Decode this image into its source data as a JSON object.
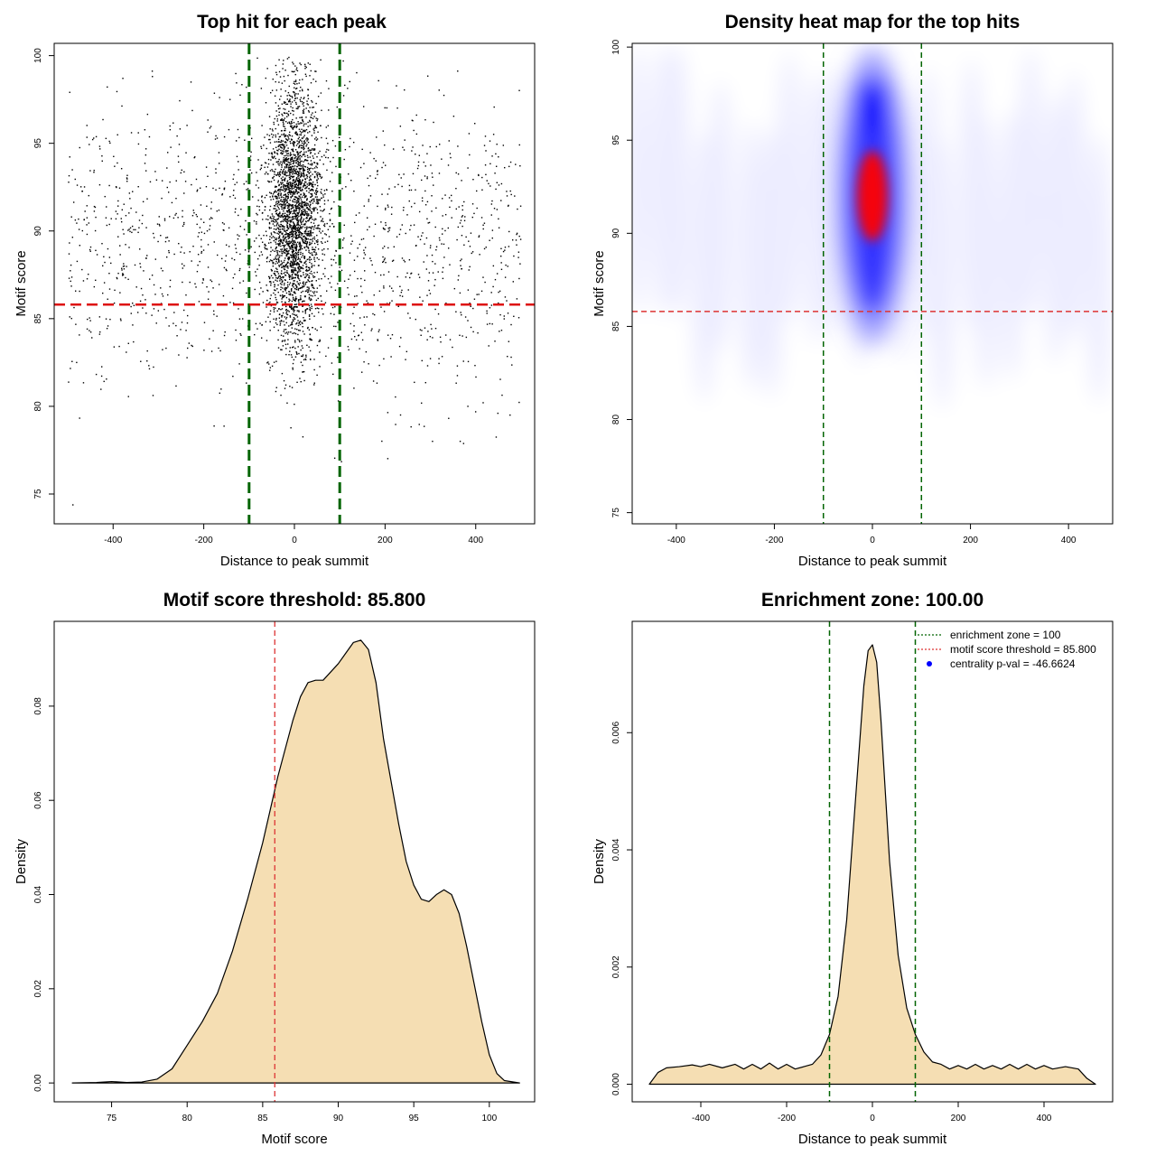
{
  "chart_data": [
    {
      "id": "p1",
      "type": "scatter",
      "title": "Top hit for each peak",
      "xlabel": "Distance to peak summit",
      "ylabel": "Motif score",
      "xlim": [
        -530,
        530
      ],
      "ylim": [
        73.3,
        100.7
      ],
      "xticks": [
        -400,
        -200,
        0,
        200,
        400
      ],
      "yticks": [
        75,
        80,
        85,
        90,
        95,
        100
      ],
      "vlines": [
        -100,
        100
      ],
      "hline": 85.8,
      "vline_color": "#006400",
      "hline_color": "#dd1111",
      "point_color": "#000000",
      "point_cloud": {
        "background_uniform_x": [
          -500,
          500
        ],
        "background_score_range": [
          74,
          100
        ],
        "central_x_sd": 30,
        "central_score_mean": 91,
        "approx_total_points": 4200
      }
    },
    {
      "id": "p2",
      "type": "heatmap",
      "title": "Density heat map for the top hits",
      "xlabel": "Distance to peak summit",
      "ylabel": "Motif score",
      "xlim": [
        -490,
        490
      ],
      "ylim": [
        74.4,
        100.2
      ],
      "xticks": [
        -400,
        -200,
        0,
        200,
        400
      ],
      "yticks": [
        75,
        80,
        85,
        90,
        95,
        100
      ],
      "vlines": [
        -100,
        100
      ],
      "hline": 85.8,
      "vline_color": "#006400",
      "hline_color": "#dd3333",
      "colors": [
        "#ffffff",
        "#0000ff",
        "#ff0000"
      ],
      "peak": {
        "x": 0,
        "y": 92
      }
    },
    {
      "id": "p3",
      "type": "area",
      "title": "Motif score threshold: 85.800",
      "xlabel": "Motif score",
      "ylabel": "Density",
      "xlim": [
        71.2,
        103.0
      ],
      "ylim": [
        -0.004,
        0.098
      ],
      "xticks": [
        75,
        80,
        85,
        90,
        95,
        100
      ],
      "yticks": [
        0.0,
        0.02,
        0.04,
        0.06,
        0.08
      ],
      "ytick_labels": [
        "0.00",
        "0.02",
        "0.04",
        "0.06",
        "0.08"
      ],
      "vline": 85.8,
      "vline_color": "#dd3333",
      "fill": "#f5deb3",
      "x": [
        72.4,
        74,
        75,
        76,
        77,
        78,
        79,
        80,
        81,
        82,
        83,
        84,
        85,
        86,
        87,
        87.5,
        88,
        88.5,
        89,
        90,
        91,
        91.5,
        92,
        92.5,
        93,
        93.5,
        94,
        94.5,
        95,
        95.5,
        96,
        96.5,
        97,
        97.5,
        98,
        98.5,
        99,
        99.5,
        100,
        100.5,
        101,
        102
      ],
      "y": [
        0.0,
        0.0001,
        0.0003,
        0.0001,
        0.0002,
        0.0008,
        0.003,
        0.008,
        0.013,
        0.019,
        0.028,
        0.039,
        0.051,
        0.065,
        0.077,
        0.082,
        0.085,
        0.0855,
        0.0855,
        0.089,
        0.0935,
        0.094,
        0.092,
        0.085,
        0.073,
        0.064,
        0.055,
        0.047,
        0.042,
        0.039,
        0.0385,
        0.04,
        0.041,
        0.04,
        0.036,
        0.029,
        0.021,
        0.013,
        0.006,
        0.002,
        0.0005,
        0.0
      ]
    },
    {
      "id": "p4",
      "type": "area",
      "title": "Enrichment zone: 100.00",
      "xlabel": "Distance to peak summit",
      "ylabel": "Density",
      "xlim": [
        -560,
        560
      ],
      "ylim": [
        -0.0003,
        0.0079
      ],
      "xticks": [
        -400,
        -200,
        0,
        200,
        400
      ],
      "yticks": [
        0.0,
        0.002,
        0.004,
        0.006
      ],
      "ytick_labels": [
        "0.000",
        "0.002",
        "0.004",
        "0.006"
      ],
      "vlines": [
        -100,
        100
      ],
      "vline_color": "#006400",
      "fill": "#f5deb3",
      "x": [
        -520,
        -500,
        -480,
        -450,
        -420,
        -400,
        -380,
        -350,
        -320,
        -300,
        -280,
        -260,
        -240,
        -220,
        -200,
        -180,
        -160,
        -140,
        -120,
        -100,
        -80,
        -60,
        -40,
        -20,
        -10,
        0,
        10,
        20,
        40,
        60,
        80,
        100,
        120,
        140,
        160,
        180,
        200,
        220,
        240,
        260,
        280,
        300,
        320,
        340,
        360,
        380,
        400,
        420,
        450,
        480,
        500,
        520
      ],
      "y": [
        0.0,
        0.0002,
        0.00028,
        0.0003,
        0.00033,
        0.0003,
        0.00034,
        0.00028,
        0.00034,
        0.00026,
        0.00034,
        0.00026,
        0.00036,
        0.00026,
        0.00034,
        0.00026,
        0.0003,
        0.00034,
        0.0005,
        0.00085,
        0.0015,
        0.0028,
        0.0048,
        0.0068,
        0.0074,
        0.0075,
        0.0072,
        0.0062,
        0.0038,
        0.0022,
        0.0013,
        0.00085,
        0.00055,
        0.00038,
        0.00034,
        0.00026,
        0.00032,
        0.00026,
        0.00034,
        0.00026,
        0.00032,
        0.00026,
        0.00034,
        0.00026,
        0.00034,
        0.00026,
        0.00032,
        0.00026,
        0.0003,
        0.00026,
        0.0001,
        0.0
      ],
      "legend": [
        {
          "label": "enrichment zone = 100",
          "style": "dotted-line",
          "color": "#006400"
        },
        {
          "label": "motif score threshold = 85.800",
          "style": "dotted-line",
          "color": "#dd3333"
        },
        {
          "label": "centrality p-val = -46.6624",
          "style": "dot",
          "color": "#0000ff"
        }
      ],
      "legend_position": "top-right"
    }
  ]
}
